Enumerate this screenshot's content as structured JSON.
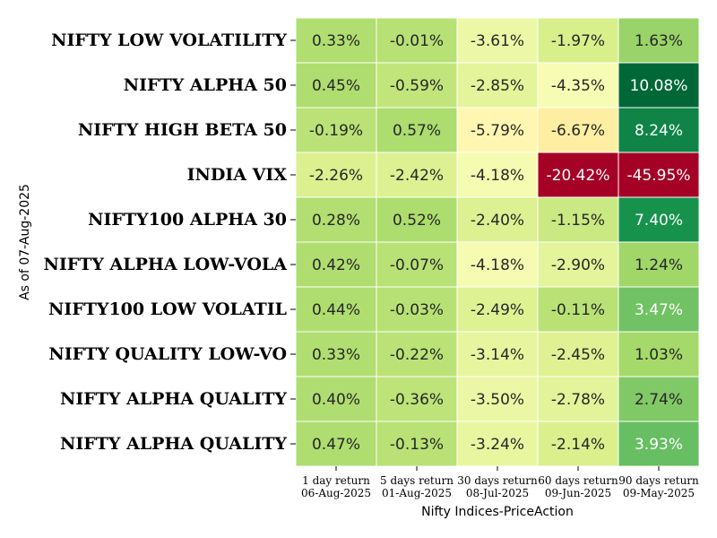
{
  "chart_data": {
    "type": "heatmap",
    "xlabel": "Nifty Indices-PriceAction",
    "ylabel": "As of 07-Aug-2025",
    "columns": [
      {
        "line1": "1 day return",
        "line2": "06-Aug-2025"
      },
      {
        "line1": "5 days return",
        "line2": "01-Aug-2025"
      },
      {
        "line1": "30 days return",
        "line2": "08-Jul-2025"
      },
      {
        "line1": "60 days return",
        "line2": "09-Jun-2025"
      },
      {
        "line1": "90 days return",
        "line2": "09-May-2025"
      }
    ],
    "rows": [
      "NIFTY LOW VOLATILITY",
      "NIFTY ALPHA 50",
      "NIFTY HIGH BETA 50",
      "INDIA VIX",
      "NIFTY100 ALPHA 30",
      "NIFTY ALPHA LOW-VOLA",
      "NIFTY100 LOW VOLATIL",
      "NIFTY QUALITY LOW-VO",
      "NIFTY ALPHA QUALITY ",
      "NIFTY ALPHA QUALITY "
    ],
    "values": [
      [
        0.33,
        -0.01,
        -3.61,
        -1.97,
        1.63
      ],
      [
        0.45,
        -0.59,
        -2.85,
        -4.35,
        10.08
      ],
      [
        -0.19,
        0.57,
        -5.79,
        -6.67,
        8.24
      ],
      [
        -2.26,
        -2.42,
        -4.18,
        -20.42,
        -45.95
      ],
      [
        0.28,
        0.52,
        -2.4,
        -1.15,
        7.4
      ],
      [
        0.42,
        -0.07,
        -4.18,
        -2.9,
        1.24
      ],
      [
        0.44,
        -0.03,
        -2.49,
        -0.11,
        3.47
      ],
      [
        0.33,
        -0.22,
        -3.14,
        -2.45,
        1.03
      ],
      [
        0.4,
        -0.36,
        -3.5,
        -2.78,
        2.74
      ],
      [
        0.47,
        -0.13,
        -3.24,
        -2.14,
        3.93
      ]
    ],
    "value_suffix": "%",
    "colormap": "RdYlGn",
    "color_range": [
      -20,
      10
    ],
    "grid": true,
    "legend": "none"
  }
}
